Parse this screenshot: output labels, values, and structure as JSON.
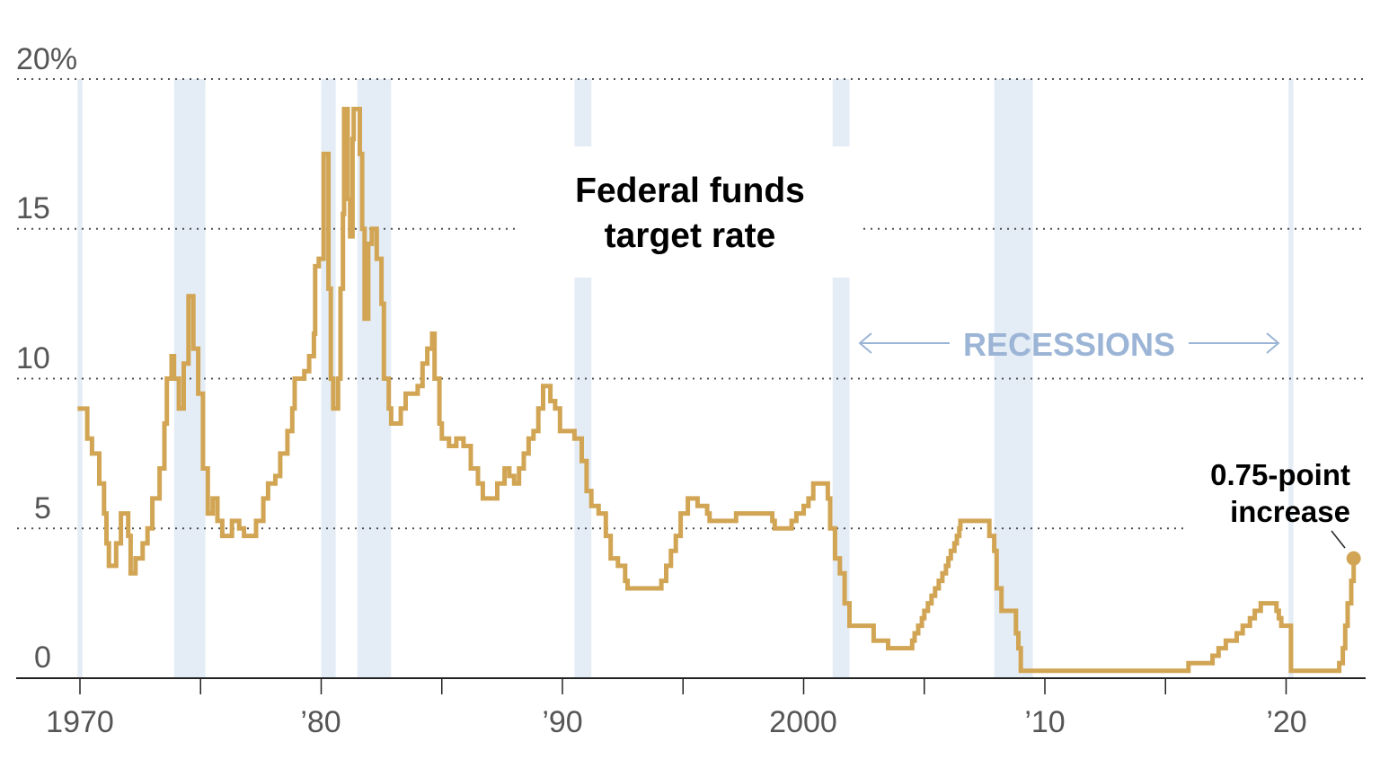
{
  "chart_data": {
    "type": "line",
    "title": "Federal funds target rate",
    "xlabel": "",
    "ylabel": "",
    "xlim": [
      1969.9,
      2023.0
    ],
    "ylim": [
      0,
      20
    ],
    "grid": true,
    "step": true,
    "y_ticks": [
      {
        "value": 0,
        "label": "0"
      },
      {
        "value": 5,
        "label": "5"
      },
      {
        "value": 10,
        "label": "10"
      },
      {
        "value": 15,
        "label": "15"
      },
      {
        "value": 20,
        "label": "20%"
      }
    ],
    "x_ticks": [
      {
        "value": 1970,
        "label": "1970"
      },
      {
        "value": 1980,
        "label": "’80"
      },
      {
        "value": 1990,
        "label": "’90"
      },
      {
        "value": 2000,
        "label": "2000"
      },
      {
        "value": 2010,
        "label": "’10"
      },
      {
        "value": 2020,
        "label": "’20"
      }
    ],
    "x_minor_ticks": [
      1975,
      1985,
      1995,
      2005,
      2015
    ],
    "line_color": "#d1a554",
    "recession_color": "#e4ecf5",
    "recessions_label": "RECESSIONS",
    "recessions_label_color": "#9cb5d6",
    "recessions": [
      [
        1969.9,
        1970.1
      ],
      [
        1973.9,
        1975.2
      ],
      [
        1980.0,
        1980.6
      ],
      [
        1981.5,
        1982.9
      ],
      [
        1990.5,
        1991.2
      ],
      [
        2001.2,
        2001.9
      ],
      [
        2007.9,
        2009.5
      ],
      [
        2020.1,
        2020.3
      ]
    ],
    "annotation": {
      "text_line1": "0.75-point",
      "text_line2": "increase",
      "x": 2022.8,
      "y": 4.0
    },
    "points": [
      [
        1969.9,
        9.0
      ],
      [
        1970.3,
        8.0
      ],
      [
        1970.5,
        7.5
      ],
      [
        1970.8,
        6.5
      ],
      [
        1971.0,
        5.5
      ],
      [
        1971.1,
        4.5
      ],
      [
        1971.2,
        3.75
      ],
      [
        1971.5,
        4.5
      ],
      [
        1971.7,
        5.5
      ],
      [
        1972.0,
        4.75
      ],
      [
        1972.1,
        3.5
      ],
      [
        1972.3,
        4.0
      ],
      [
        1972.6,
        4.5
      ],
      [
        1972.8,
        5.0
      ],
      [
        1973.0,
        6.0
      ],
      [
        1973.3,
        7.0
      ],
      [
        1973.5,
        8.5
      ],
      [
        1973.6,
        10.0
      ],
      [
        1973.8,
        10.75
      ],
      [
        1973.9,
        10.0
      ],
      [
        1974.1,
        9.0
      ],
      [
        1974.3,
        10.5
      ],
      [
        1974.5,
        12.75
      ],
      [
        1974.7,
        11.0
      ],
      [
        1974.9,
        9.5
      ],
      [
        1975.1,
        7.0
      ],
      [
        1975.3,
        5.5
      ],
      [
        1975.5,
        6.0
      ],
      [
        1975.7,
        5.25
      ],
      [
        1975.9,
        4.75
      ],
      [
        1976.3,
        5.25
      ],
      [
        1976.6,
        5.0
      ],
      [
        1976.8,
        4.75
      ],
      [
        1977.3,
        5.25
      ],
      [
        1977.6,
        6.0
      ],
      [
        1977.8,
        6.5
      ],
      [
        1978.1,
        6.75
      ],
      [
        1978.3,
        7.5
      ],
      [
        1978.6,
        8.25
      ],
      [
        1978.8,
        9.0
      ],
      [
        1978.9,
        10.0
      ],
      [
        1979.3,
        10.25
      ],
      [
        1979.5,
        10.75
      ],
      [
        1979.7,
        11.5
      ],
      [
        1979.75,
        13.75
      ],
      [
        1979.9,
        14.0
      ],
      [
        1980.1,
        17.5
      ],
      [
        1980.3,
        13.0
      ],
      [
        1980.4,
        10.0
      ],
      [
        1980.5,
        9.0
      ],
      [
        1980.7,
        10.0
      ],
      [
        1980.8,
        13.0
      ],
      [
        1980.9,
        15.5
      ],
      [
        1980.95,
        19.0
      ],
      [
        1981.1,
        16.0
      ],
      [
        1981.2,
        14.75
      ],
      [
        1981.3,
        18.0
      ],
      [
        1981.35,
        19.0
      ],
      [
        1981.6,
        17.5
      ],
      [
        1981.7,
        15.0
      ],
      [
        1981.8,
        12.0
      ],
      [
        1981.95,
        14.5
      ],
      [
        1982.1,
        15.0
      ],
      [
        1982.3,
        14.0
      ],
      [
        1982.5,
        12.5
      ],
      [
        1982.6,
        10.0
      ],
      [
        1982.8,
        9.0
      ],
      [
        1982.9,
        8.5
      ],
      [
        1983.3,
        9.0
      ],
      [
        1983.5,
        9.5
      ],
      [
        1984.0,
        9.75
      ],
      [
        1984.2,
        10.5
      ],
      [
        1984.4,
        11.0
      ],
      [
        1984.6,
        11.5
      ],
      [
        1984.7,
        10.0
      ],
      [
        1984.9,
        8.5
      ],
      [
        1985.0,
        8.0
      ],
      [
        1985.3,
        7.75
      ],
      [
        1985.6,
        8.0
      ],
      [
        1985.9,
        7.75
      ],
      [
        1986.2,
        7.0
      ],
      [
        1986.5,
        6.5
      ],
      [
        1986.7,
        6.0
      ],
      [
        1987.0,
        6.0
      ],
      [
        1987.3,
        6.5
      ],
      [
        1987.6,
        7.0
      ],
      [
        1987.8,
        6.75
      ],
      [
        1988.0,
        6.5
      ],
      [
        1988.2,
        7.0
      ],
      [
        1988.4,
        7.5
      ],
      [
        1988.6,
        8.0
      ],
      [
        1988.8,
        8.25
      ],
      [
        1989.0,
        9.0
      ],
      [
        1989.2,
        9.75
      ],
      [
        1989.5,
        9.25
      ],
      [
        1989.7,
        9.0
      ],
      [
        1989.9,
        8.25
      ],
      [
        1990.5,
        8.0
      ],
      [
        1990.8,
        7.25
      ],
      [
        1991.0,
        6.25
      ],
      [
        1991.2,
        5.75
      ],
      [
        1991.5,
        5.5
      ],
      [
        1991.8,
        4.75
      ],
      [
        1992.0,
        4.0
      ],
      [
        1992.3,
        3.75
      ],
      [
        1992.6,
        3.25
      ],
      [
        1992.7,
        3.0
      ],
      [
        1994.1,
        3.25
      ],
      [
        1994.3,
        3.75
      ],
      [
        1994.5,
        4.25
      ],
      [
        1994.7,
        4.75
      ],
      [
        1994.9,
        5.5
      ],
      [
        1995.2,
        6.0
      ],
      [
        1995.6,
        5.75
      ],
      [
        1996.0,
        5.5
      ],
      [
        1996.1,
        5.25
      ],
      [
        1997.2,
        5.5
      ],
      [
        1998.7,
        5.25
      ],
      [
        1998.8,
        5.0
      ],
      [
        1999.5,
        5.25
      ],
      [
        1999.7,
        5.5
      ],
      [
        2000.0,
        5.75
      ],
      [
        2000.2,
        6.0
      ],
      [
        2000.4,
        6.5
      ],
      [
        2001.0,
        6.0
      ],
      [
        2001.1,
        5.0
      ],
      [
        2001.3,
        4.0
      ],
      [
        2001.5,
        3.5
      ],
      [
        2001.7,
        2.5
      ],
      [
        2001.9,
        1.75
      ],
      [
        2002.9,
        1.25
      ],
      [
        2003.5,
        1.0
      ],
      [
        2004.5,
        1.25
      ],
      [
        2004.6,
        1.5
      ],
      [
        2004.75,
        1.75
      ],
      [
        2004.9,
        2.0
      ],
      [
        2005.0,
        2.25
      ],
      [
        2005.15,
        2.5
      ],
      [
        2005.3,
        2.75
      ],
      [
        2005.45,
        3.0
      ],
      [
        2005.6,
        3.25
      ],
      [
        2005.75,
        3.5
      ],
      [
        2005.9,
        3.75
      ],
      [
        2006.0,
        4.0
      ],
      [
        2006.1,
        4.25
      ],
      [
        2006.25,
        4.5
      ],
      [
        2006.35,
        4.75
      ],
      [
        2006.45,
        5.0
      ],
      [
        2006.5,
        5.25
      ],
      [
        2007.7,
        4.75
      ],
      [
        2007.9,
        4.25
      ],
      [
        2008.0,
        3.0
      ],
      [
        2008.2,
        2.25
      ],
      [
        2008.8,
        1.5
      ],
      [
        2008.9,
        1.0
      ],
      [
        2009.0,
        0.25
      ],
      [
        2015.95,
        0.5
      ],
      [
        2016.95,
        0.75
      ],
      [
        2017.2,
        1.0
      ],
      [
        2017.5,
        1.25
      ],
      [
        2017.95,
        1.5
      ],
      [
        2018.2,
        1.75
      ],
      [
        2018.5,
        2.0
      ],
      [
        2018.7,
        2.25
      ],
      [
        2018.95,
        2.5
      ],
      [
        2019.6,
        2.25
      ],
      [
        2019.7,
        2.0
      ],
      [
        2019.8,
        1.75
      ],
      [
        2020.2,
        0.25
      ],
      [
        2022.2,
        0.5
      ],
      [
        2022.35,
        1.0
      ],
      [
        2022.45,
        1.75
      ],
      [
        2022.55,
        2.5
      ],
      [
        2022.7,
        3.25
      ],
      [
        2022.8,
        4.0
      ]
    ]
  }
}
